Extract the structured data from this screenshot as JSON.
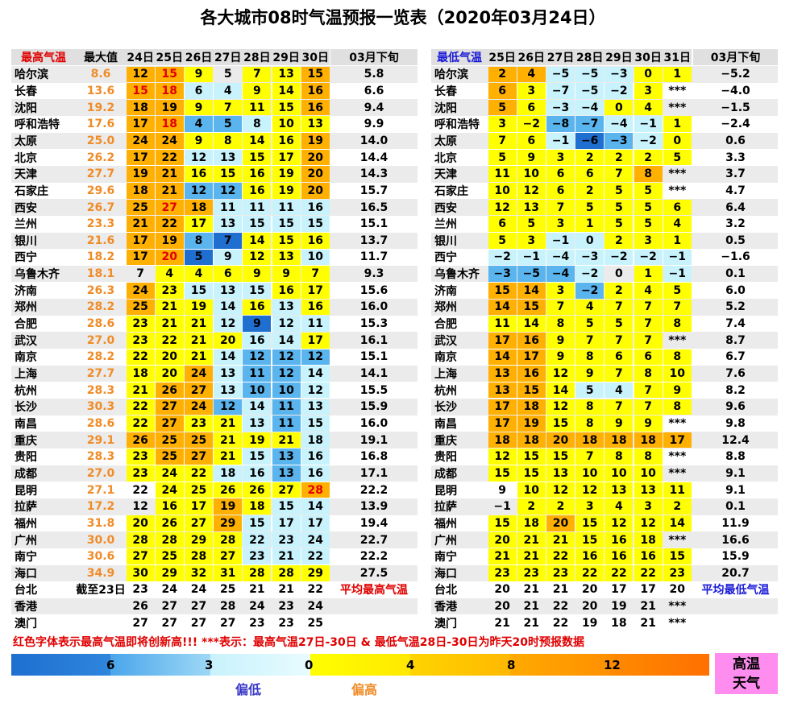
{
  "title": "各大城市08时气温预报一览表（2020年03月24日）",
  "palette": {
    "D": "#1e6fd0",
    "B": "#5ab4ee",
    "L": "#c8f2fc",
    "W": "#ffffff",
    "Y": "#ffff00",
    "O": "#ffb000"
  },
  "fonts": {
    "k": "#000000",
    "r": "#e00000",
    "b": "#1a1ad8",
    "o": "#f08c28"
  },
  "high": {
    "header": [
      "最高气温",
      "最大值",
      "24日",
      "25日",
      "26日",
      "27日",
      "28日",
      "29日",
      "30日",
      "03月下旬"
    ],
    "header_font": "r",
    "max_font": "o",
    "rows": [
      {
        "city": "哈尔滨",
        "max": "8.6",
        "days": [
          "12",
          "15",
          "9",
          "5",
          "7",
          "13",
          "15"
        ],
        "avg": "5.8",
        "fill": "OOYWYYO",
        "font": "krkkkkk"
      },
      {
        "city": "长春",
        "max": "13.6",
        "days": [
          "15",
          "18",
          "6",
          "4",
          "9",
          "14",
          "16"
        ],
        "avg": "6.6",
        "fill": "OOLLYYO",
        "font": "rrkkkkk"
      },
      {
        "city": "沈阳",
        "max": "19.2",
        "days": [
          "18",
          "19",
          "9",
          "7",
          "11",
          "15",
          "16"
        ],
        "avg": "9.4",
        "fill": "OOYYYYO"
      },
      {
        "city": "呼和浩特",
        "max": "17.6",
        "days": [
          "17",
          "18",
          "4",
          "5",
          "8",
          "10",
          "13"
        ],
        "avg": "9.9",
        "fill": "OOBBLYY",
        "font": "krkkkkk"
      },
      {
        "city": "太原",
        "max": "25.0",
        "days": [
          "24",
          "24",
          "9",
          "8",
          "14",
          "16",
          "19"
        ],
        "avg": "14.0",
        "fill": "OOYYYYO"
      },
      {
        "city": "北京",
        "max": "26.2",
        "days": [
          "17",
          "22",
          "12",
          "13",
          "15",
          "17",
          "20"
        ],
        "avg": "14.4",
        "fill": "OOLLYYO"
      },
      {
        "city": "天津",
        "max": "27.7",
        "days": [
          "19",
          "21",
          "16",
          "15",
          "16",
          "19",
          "20"
        ],
        "avg": "14.3",
        "fill": "OOYYYYO"
      },
      {
        "city": "石家庄",
        "max": "29.6",
        "days": [
          "18",
          "21",
          "12",
          "12",
          "16",
          "19",
          "20"
        ],
        "avg": "15.7",
        "fill": "OOBBYYO"
      },
      {
        "city": "西安",
        "max": "26.7",
        "days": [
          "25",
          "27",
          "18",
          "11",
          "11",
          "11",
          "16"
        ],
        "avg": "16.5",
        "fill": "OOOLLLL",
        "font": "krkkkkk"
      },
      {
        "city": "兰州",
        "max": "23.3",
        "days": [
          "21",
          "22",
          "17",
          "13",
          "15",
          "15",
          "15"
        ],
        "avg": "15.1",
        "fill": "OOYLLLL"
      },
      {
        "city": "银川",
        "max": "21.6",
        "days": [
          "17",
          "19",
          "8",
          "7",
          "14",
          "15",
          "16"
        ],
        "avg": "13.7",
        "fill": "OOBDYYY"
      },
      {
        "city": "西宁",
        "max": "18.2",
        "days": [
          "17",
          "20",
          "5",
          "9",
          "12",
          "13",
          "10"
        ],
        "avg": "11.7",
        "fill": "OODLYYL",
        "font": "krkkkkk"
      },
      {
        "city": "乌鲁木齐",
        "max": "18.1",
        "days": [
          "7",
          "4",
          "4",
          "6",
          "9",
          "9",
          "7"
        ],
        "avg": "9.3",
        "fill": "WYYYYYY"
      },
      {
        "city": "济南",
        "max": "26.3",
        "days": [
          "24",
          "23",
          "15",
          "13",
          "15",
          "16",
          "17"
        ],
        "avg": "15.6",
        "fill": "OYLLLYY"
      },
      {
        "city": "郑州",
        "max": "28.2",
        "days": [
          "25",
          "21",
          "19",
          "14",
          "16",
          "13",
          "16"
        ],
        "avg": "16.0",
        "fill": "OYYLYLY"
      },
      {
        "city": "合肥",
        "max": "28.6",
        "days": [
          "23",
          "21",
          "21",
          "12",
          "9",
          "12",
          "11"
        ],
        "avg": "15.3",
        "fill": "YYYLDLL"
      },
      {
        "city": "武汉",
        "max": "27.0",
        "days": [
          "23",
          "22",
          "21",
          "20",
          "16",
          "14",
          "17"
        ],
        "avg": "16.1",
        "fill": "YYYYLLY"
      },
      {
        "city": "南京",
        "max": "28.2",
        "days": [
          "22",
          "20",
          "21",
          "14",
          "12",
          "12",
          "12"
        ],
        "avg": "15.1",
        "fill": "YYYLBBB"
      },
      {
        "city": "上海",
        "max": "27.7",
        "days": [
          "18",
          "20",
          "24",
          "13",
          "11",
          "12",
          "14"
        ],
        "avg": "14.1",
        "fill": "YYOLBBL"
      },
      {
        "city": "杭州",
        "max": "28.3",
        "days": [
          "21",
          "26",
          "27",
          "13",
          "10",
          "10",
          "12"
        ],
        "avg": "15.5",
        "fill": "YOOLBBL"
      },
      {
        "city": "长沙",
        "max": "30.3",
        "days": [
          "22",
          "27",
          "24",
          "12",
          "14",
          "11",
          "13"
        ],
        "avg": "15.9",
        "fill": "YOOBLBL"
      },
      {
        "city": "南昌",
        "max": "28.6",
        "days": [
          "22",
          "27",
          "23",
          "21",
          "13",
          "11",
          "15"
        ],
        "avg": "16.0",
        "fill": "YOYYLBL"
      },
      {
        "city": "重庆",
        "max": "29.1",
        "days": [
          "26",
          "25",
          "25",
          "21",
          "19",
          "21",
          "18"
        ],
        "avg": "19.1",
        "fill": "OOOYYYL"
      },
      {
        "city": "贵阳",
        "max": "28.3",
        "days": [
          "23",
          "25",
          "27",
          "21",
          "15",
          "13",
          "16"
        ],
        "avg": "16.8",
        "fill": "YOOYLBL"
      },
      {
        "city": "成都",
        "max": "27.0",
        "days": [
          "23",
          "24",
          "22",
          "18",
          "16",
          "13",
          "16"
        ],
        "avg": "17.1",
        "fill": "YYYLLBL"
      },
      {
        "city": "昆明",
        "max": "27.1",
        "days": [
          "22",
          "24",
          "25",
          "26",
          "26",
          "27",
          "28"
        ],
        "avg": "22.2",
        "fill": "WYYYYYO",
        "font": "kkkkkkr"
      },
      {
        "city": "拉萨",
        "max": "17.2",
        "days": [
          "12",
          "16",
          "17",
          "19",
          "18",
          "15",
          "14"
        ],
        "avg": "13.9",
        "fill": "WYYOYLL"
      },
      {
        "city": "福州",
        "max": "31.8",
        "days": [
          "20",
          "26",
          "27",
          "29",
          "15",
          "17",
          "17"
        ],
        "avg": "19.4",
        "fill": "YYYOLLL"
      },
      {
        "city": "广州",
        "max": "30.0",
        "days": [
          "28",
          "28",
          "29",
          "28",
          "22",
          "23",
          "24"
        ],
        "avg": "22.7",
        "fill": "YYYYLLL"
      },
      {
        "city": "南宁",
        "max": "30.6",
        "days": [
          "27",
          "25",
          "28",
          "27",
          "23",
          "21",
          "22"
        ],
        "avg": "22.2",
        "fill": "YYYYLLL"
      },
      {
        "city": "海口",
        "max": "34.9",
        "days": [
          "30",
          "29",
          "32",
          "31",
          "28",
          "28",
          "29"
        ],
        "avg": "27.5",
        "fill": "YYYYYYY"
      },
      {
        "city": "台北",
        "max": "截至23日",
        "max_font": "k",
        "days": [
          "23",
          "24",
          "24",
          "25",
          "21",
          "21",
          "22"
        ],
        "avg": "平均最高气温",
        "avg_font": "r",
        "fill": "WWWWWWW"
      },
      {
        "city": "香港",
        "days": [
          "26",
          "27",
          "27",
          "28",
          "24",
          "23",
          "24"
        ],
        "fill": "WWWWWWW"
      },
      {
        "city": "澳门",
        "days": [
          "27",
          "27",
          "27",
          "27",
          "23",
          "23",
          "25"
        ],
        "fill": "WWWWWWW"
      }
    ]
  },
  "low": {
    "header": [
      "最低气温",
      "25日",
      "26日",
      "27日",
      "28日",
      "29日",
      "30日",
      "31日",
      "03月下旬"
    ],
    "header_font": "b",
    "rows": [
      {
        "city": "哈尔滨",
        "days": [
          "2",
          "4",
          "−5",
          "−5",
          "−3",
          "0",
          "1"
        ],
        "avg": "−5.2",
        "fill": "OOLLLYY"
      },
      {
        "city": "长春",
        "days": [
          "6",
          "3",
          "−7",
          "−5",
          "−2",
          "3",
          "***"
        ],
        "avg": "−4.0",
        "fill": "OYLLLYW"
      },
      {
        "city": "沈阳",
        "days": [
          "5",
          "6",
          "−3",
          "−4",
          "0",
          "4",
          "***"
        ],
        "avg": "−1.5",
        "fill": "OYLLYYW"
      },
      {
        "city": "呼和浩特",
        "days": [
          "3",
          "−2",
          "−8",
          "−7",
          "−4",
          "−1",
          "1"
        ],
        "avg": "−2.4",
        "fill": "YYBBLLY"
      },
      {
        "city": "太原",
        "days": [
          "7",
          "6",
          "−1",
          "−6",
          "−3",
          "−2",
          "0"
        ],
        "avg": "0.6",
        "fill": "YYLDBLY"
      },
      {
        "city": "北京",
        "days": [
          "5",
          "9",
          "3",
          "2",
          "2",
          "2",
          "5"
        ],
        "avg": "3.3",
        "fill": "YYYYYYY"
      },
      {
        "city": "天津",
        "days": [
          "11",
          "10",
          "6",
          "6",
          "7",
          "8",
          "***"
        ],
        "avg": "3.7",
        "fill": "YYYYYOW"
      },
      {
        "city": "石家庄",
        "days": [
          "10",
          "12",
          "6",
          "2",
          "5",
          "5",
          "***"
        ],
        "avg": "4.7",
        "fill": "YYYYYYW"
      },
      {
        "city": "西安",
        "days": [
          "12",
          "13",
          "7",
          "5",
          "5",
          "5",
          "6"
        ],
        "avg": "6.4",
        "fill": "YYYYYYY"
      },
      {
        "city": "兰州",
        "days": [
          "6",
          "5",
          "3",
          "1",
          "5",
          "5",
          "4"
        ],
        "avg": "3.2",
        "fill": "YYYYYYY"
      },
      {
        "city": "银川",
        "days": [
          "5",
          "3",
          "−1",
          "0",
          "2",
          "3",
          "1"
        ],
        "avg": "0.5",
        "fill": "YYLLYYY"
      },
      {
        "city": "西宁",
        "days": [
          "−2",
          "−1",
          "−4",
          "−3",
          "−2",
          "−2",
          "−1"
        ],
        "avg": "−1.6",
        "fill": "LLLLLLL"
      },
      {
        "city": "乌鲁木齐",
        "days": [
          "−3",
          "−5",
          "−4",
          "−2",
          "0",
          "1",
          "−1"
        ],
        "avg": "0.1",
        "fill": "BBBLWYL"
      },
      {
        "city": "济南",
        "days": [
          "15",
          "14",
          "3",
          "−2",
          "2",
          "4",
          "5"
        ],
        "avg": "6.0",
        "fill": "OOYBYYY"
      },
      {
        "city": "郑州",
        "days": [
          "14",
          "15",
          "7",
          "4",
          "7",
          "7",
          "7"
        ],
        "avg": "5.2",
        "fill": "OOYYYYY"
      },
      {
        "city": "合肥",
        "days": [
          "11",
          "14",
          "8",
          "5",
          "5",
          "7",
          "8"
        ],
        "avg": "7.4",
        "fill": "YYYYYYY"
      },
      {
        "city": "武汉",
        "days": [
          "17",
          "16",
          "9",
          "7",
          "7",
          "7",
          "***"
        ],
        "avg": "8.7",
        "fill": "OOYYYYW"
      },
      {
        "city": "南京",
        "days": [
          "14",
          "17",
          "9",
          "8",
          "6",
          "6",
          "8"
        ],
        "avg": "6.7",
        "fill": "OOYYYYY"
      },
      {
        "city": "上海",
        "days": [
          "13",
          "16",
          "12",
          "9",
          "7",
          "8",
          "10"
        ],
        "avg": "7.6",
        "fill": "OOYYYYY"
      },
      {
        "city": "杭州",
        "days": [
          "13",
          "15",
          "14",
          "5",
          "4",
          "7",
          "9"
        ],
        "avg": "8.2",
        "fill": "OOYLLYY"
      },
      {
        "city": "长沙",
        "days": [
          "17",
          "18",
          "12",
          "8",
          "7",
          "7",
          "8"
        ],
        "avg": "9.6",
        "fill": "OOYYYYY"
      },
      {
        "city": "南昌",
        "days": [
          "17",
          "19",
          "15",
          "8",
          "9",
          "9",
          "***"
        ],
        "avg": "9.8",
        "fill": "OOYYYYW"
      },
      {
        "city": "重庆",
        "days": [
          "18",
          "18",
          "20",
          "18",
          "18",
          "18",
          "17"
        ],
        "avg": "12.4",
        "fill": "OOOOOOO"
      },
      {
        "city": "贵阳",
        "days": [
          "12",
          "15",
          "15",
          "7",
          "8",
          "8",
          "***"
        ],
        "avg": "8.8",
        "fill": "YYYYYYW"
      },
      {
        "city": "成都",
        "days": [
          "15",
          "15",
          "13",
          "10",
          "10",
          "10",
          "***"
        ],
        "avg": "9.1",
        "fill": "YYYYYYW"
      },
      {
        "city": "昆明",
        "days": [
          "9",
          "10",
          "12",
          "12",
          "13",
          "13",
          "11"
        ],
        "avg": "9.1",
        "fill": "WYYYYYY"
      },
      {
        "city": "拉萨",
        "days": [
          "−1",
          "2",
          "2",
          "3",
          "4",
          "3",
          "2"
        ],
        "avg": "0.1",
        "fill": "WYYYYYY"
      },
      {
        "city": "福州",
        "days": [
          "15",
          "18",
          "20",
          "15",
          "12",
          "12",
          "14"
        ],
        "avg": "11.9",
        "fill": "YYOYYYY"
      },
      {
        "city": "广州",
        "days": [
          "20",
          "21",
          "21",
          "15",
          "16",
          "18",
          "***"
        ],
        "avg": "16.6",
        "fill": "YYYYYYW"
      },
      {
        "city": "南宁",
        "days": [
          "21",
          "21",
          "22",
          "16",
          "16",
          "16",
          "15"
        ],
        "avg": "15.9",
        "fill": "YYYYYYY"
      },
      {
        "city": "海口",
        "days": [
          "23",
          "23",
          "23",
          "22",
          "22",
          "22",
          "23"
        ],
        "avg": "20.7",
        "fill": "YYYYYYY"
      },
      {
        "city": "台北",
        "days": [
          "20",
          "21",
          "21",
          "20",
          "17",
          "17",
          "20"
        ],
        "avg": "平均最低气温",
        "avg_font": "b",
        "fill": "WWWWWWW"
      },
      {
        "city": "香港",
        "days": [
          "20",
          "21",
          "22",
          "20",
          "19",
          "21",
          "***"
        ],
        "fill": "WWWWWWW"
      },
      {
        "city": "澳门",
        "days": [
          "21",
          "21",
          "22",
          "19",
          "18",
          "21",
          "***"
        ],
        "fill": "WWWWWWW"
      }
    ]
  },
  "note": "红色字体表示最高气温即将创新高!!! ***表示：最高气温27日-30日 & 最低气温28日-30日为昨天20时预报数据",
  "legend": {
    "labels": [
      "6",
      "3",
      "0",
      "4",
      "8",
      "12"
    ],
    "low": "偏低",
    "high": "偏高",
    "hot": "高温天气"
  }
}
